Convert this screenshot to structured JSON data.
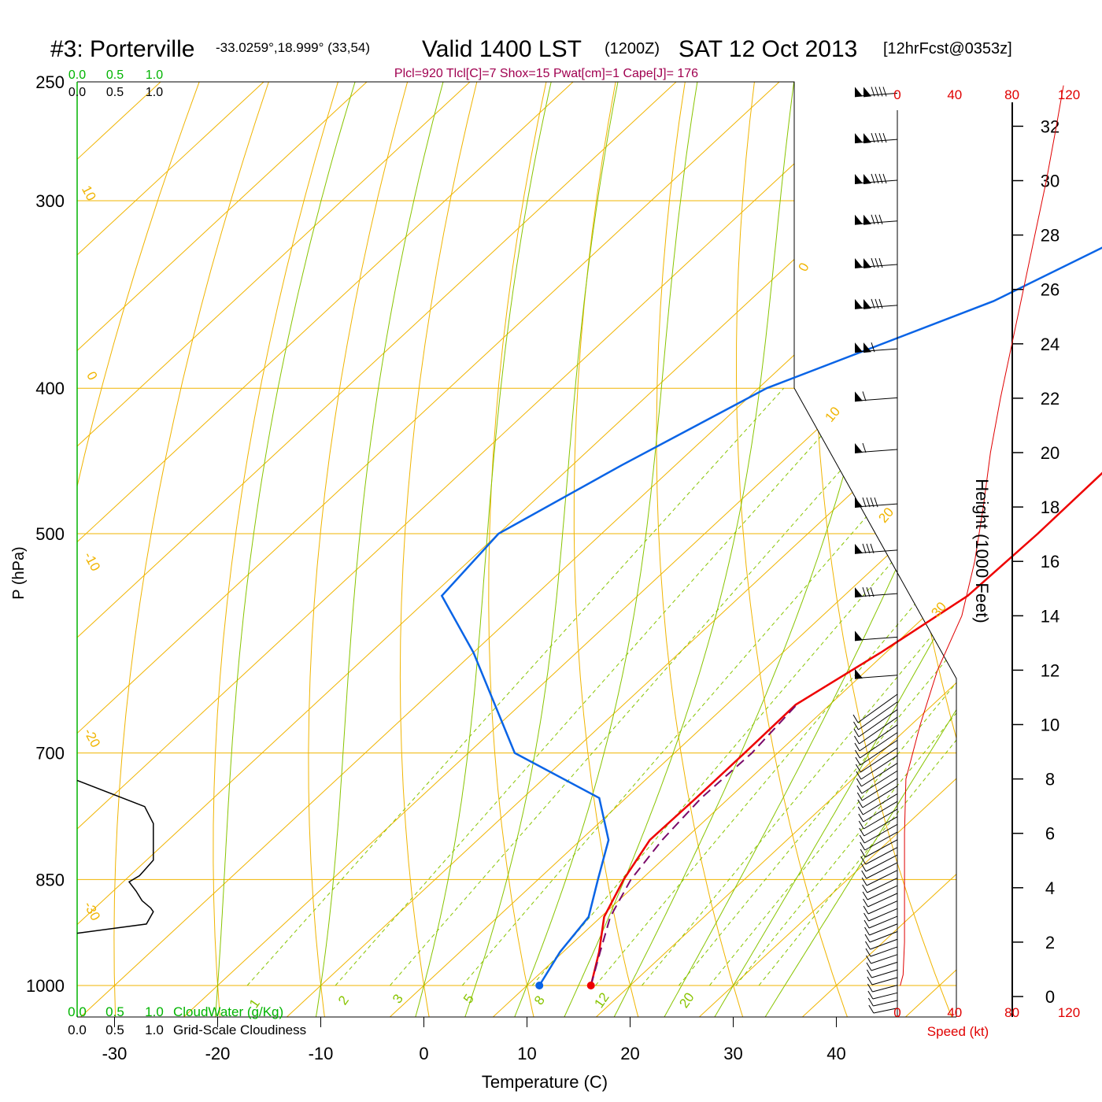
{
  "header": {
    "station": "#3: Porterville",
    "coords": "-33.0259°,18.999° (33,54)",
    "valid": "Valid 1400 LST",
    "zulu": "(1200Z)",
    "date": "SAT 12 Oct 2013",
    "forecast": "[12hrFcst@0353z]"
  },
  "indices": "Plcl=920 Tlcl[C]=7 Shox=15 Pwat[cm]=1 Cape[J]= 176",
  "colors": {
    "temperature": "#ee0000",
    "dewpoint": "#0a64e6",
    "parcel": "#7a0a6a",
    "isotherm": "#f0b400",
    "dry_adiabat": "#f0b400",
    "moist_adiabat": "#88c400",
    "mixing_ratio": "#88c400",
    "cloud_water": "#00b400",
    "speed": "#e00000"
  },
  "chart_data": [
    {
      "type": "line",
      "chart_kind": "skew-T log-P sounding",
      "xlabel": "Temperature (C)",
      "ylabel": "P (hPa)",
      "x_ticks": [
        -30,
        -20,
        -10,
        0,
        10,
        20,
        30,
        40
      ],
      "y_ticks": [
        250,
        300,
        400,
        500,
        700,
        850,
        1000
      ],
      "y_scale": "log",
      "isotherm_labels": [
        "10",
        "0",
        "-10",
        "-20",
        "-30",
        "0",
        "10",
        "20",
        "30"
      ],
      "mixing_ratio_labels": [
        "1",
        "2",
        "3",
        "5",
        "8",
        "12",
        "20"
      ],
      "series": [
        {
          "role": "temperature",
          "points": [
            [
              16.2,
              1000
            ],
            [
              13.5,
              950
            ],
            [
              10.3,
              900
            ],
            [
              8.3,
              850
            ],
            [
              6.7,
              800
            ],
            [
              6.8,
              750
            ],
            [
              6.8,
              700
            ],
            [
              6.7,
              650
            ],
            [
              9.5,
              600
            ],
            [
              12.0,
              550
            ],
            [
              12.3,
              500
            ],
            [
              12.2,
              450
            ],
            [
              11.4,
              400
            ],
            [
              10.5,
              350
            ],
            [
              9.6,
              300
            ],
            [
              7.6,
              270
            ]
          ]
        },
        {
          "role": "dewpoint",
          "points": [
            [
              11.2,
              1000
            ],
            [
              9.7,
              950
            ],
            [
              8.8,
              900
            ],
            [
              5.8,
              850
            ],
            [
              2.7,
              800
            ],
            [
              -2.6,
              750
            ],
            [
              -15.5,
              700
            ],
            [
              -30,
              600
            ],
            [
              -39,
              550
            ],
            [
              -40,
              500
            ],
            [
              -35.2,
              450
            ],
            [
              -29.2,
              400
            ],
            [
              -16.3,
              350
            ],
            [
              -7.0,
              300
            ],
            [
              -4.0,
              270
            ]
          ]
        },
        {
          "role": "parcel",
          "points": [
            [
              16.2,
              1000
            ],
            [
              13.6,
              950
            ],
            [
              10.9,
              900
            ],
            [
              9.0,
              850
            ],
            [
              7.9,
              800
            ],
            [
              7.3,
              750
            ],
            [
              7.5,
              700
            ],
            [
              6.8,
              650
            ]
          ]
        }
      ]
    },
    {
      "type": "line",
      "xlabel": "CloudWater (g/Kg)",
      "x_ticks_top": [
        "0.0",
        "0.5",
        "1.0"
      ],
      "x_ticks_bottom": [
        "0.0",
        "0.5",
        "1.0"
      ],
      "caption": "Grid-Scale Cloudiness",
      "series": [
        {
          "role": "grid-scale cloudiness",
          "points": [
            [
              0.0,
              730
            ],
            [
              0.78,
              760
            ],
            [
              0.88,
              780
            ],
            [
              0.88,
              800
            ],
            [
              0.88,
              825
            ],
            [
              0.8,
              835
            ],
            [
              0.72,
              845
            ],
            [
              0.6,
              853
            ],
            [
              0.68,
              865
            ],
            [
              0.75,
              878
            ],
            [
              0.85,
              888
            ],
            [
              0.88,
              893
            ],
            [
              0.8,
              910
            ],
            [
              0.0,
              923
            ]
          ]
        }
      ]
    },
    {
      "type": "line",
      "xlabel": "Speed (kt)",
      "ylabel": "Height (1000 Feet)",
      "x_ticks": [
        0,
        40,
        80,
        120
      ],
      "y_ticks": [
        0,
        2,
        4,
        6,
        8,
        10,
        12,
        14,
        16,
        18,
        20,
        22,
        24,
        26,
        28,
        30,
        32
      ],
      "series": [
        {
          "role": "wind speed profile",
          "points": [
            [
              2,
              0.4
            ],
            [
              4,
              0.8
            ],
            [
              5,
              2
            ],
            [
              5,
              4
            ],
            [
              5,
              6
            ],
            [
              6,
              8
            ],
            [
              16,
              10
            ],
            [
              28,
              12
            ],
            [
              45,
              14
            ],
            [
              54,
              16
            ],
            [
              60,
              18
            ],
            [
              65,
              20
            ],
            [
              72,
              22
            ],
            [
              80,
              24
            ],
            [
              88,
              26
            ],
            [
              96,
              28
            ],
            [
              104,
              30
            ],
            [
              111,
              32
            ],
            [
              116,
              33.5
            ]
          ]
        }
      ]
    }
  ],
  "wind_barbs": {
    "heights_kft": [
      33.1,
      31.4,
      29.9,
      28.4,
      26.8,
      25.3,
      23.7,
      21.9,
      20.0,
      18.0,
      16.3,
      14.7,
      13.1,
      11.7
    ],
    "flags": [
      2,
      2,
      2,
      2,
      2,
      2,
      2,
      1,
      1,
      1,
      1,
      1,
      1,
      1
    ],
    "full_barbs": [
      4,
      4,
      4,
      3,
      3,
      3,
      1,
      1,
      1,
      4,
      3,
      3,
      0,
      0
    ]
  }
}
